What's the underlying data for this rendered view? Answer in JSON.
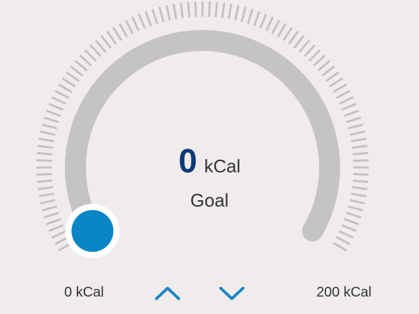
{
  "calorie_dial": {
    "value": "0",
    "value_unit": "kCal",
    "caption": "Goal",
    "min_label": "0 kCal",
    "max_label": "200 kCal",
    "min_value": 0,
    "max_value": 200,
    "current_value": 0,
    "increase_icon": "chevron-up-icon",
    "decrease_icon": "chevron-down-icon"
  },
  "colors": {
    "background": "#efeceb",
    "track": "#c5c4c3",
    "ticks": "#c3c2c1",
    "knob": "#0a85c5",
    "knob_ring": "#ffffff",
    "accent": "#1a86c4",
    "value_text": "#0d3a78"
  }
}
